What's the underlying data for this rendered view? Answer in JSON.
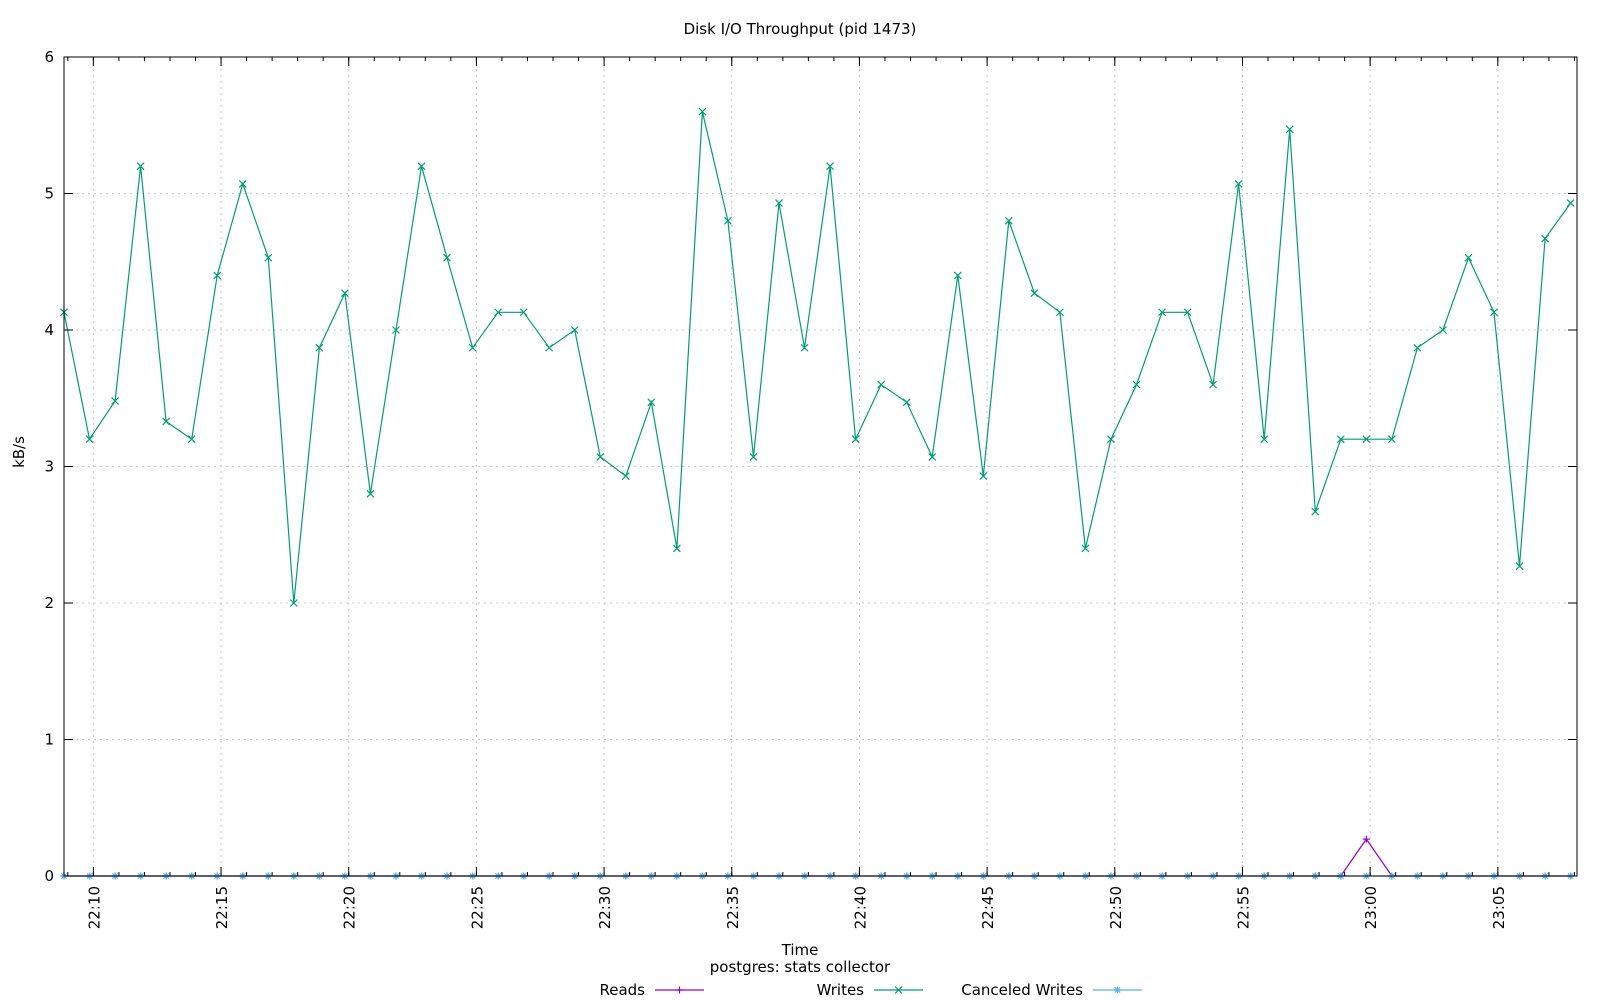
{
  "chart_data": {
    "type": "line",
    "title": "Disk I/O Throughput (pid 1473)",
    "xlabel": "Time",
    "ylabel": "kB/s",
    "subtitle": "postgres: stats collector",
    "ylim": [
      0,
      6
    ],
    "yticks": [
      "0",
      "1",
      "2",
      "3",
      "4",
      "5",
      "6"
    ],
    "xlim_minutes": [
      1328.85,
      1388.1
    ],
    "xticks": [
      {
        "label": "22:10",
        "minute": 1330
      },
      {
        "label": "22:15",
        "minute": 1335
      },
      {
        "label": "22:20",
        "minute": 1340
      },
      {
        "label": "22:25",
        "minute": 1345
      },
      {
        "label": "22:30",
        "minute": 1350
      },
      {
        "label": "22:35",
        "minute": 1355
      },
      {
        "label": "22:40",
        "minute": 1360
      },
      {
        "label": "22:45",
        "minute": 1365
      },
      {
        "label": "22:50",
        "minute": 1370
      },
      {
        "label": "22:55",
        "minute": 1375
      },
      {
        "label": "23:00",
        "minute": 1380
      },
      {
        "label": "23:05",
        "minute": 1385
      }
    ],
    "grid": true,
    "legend_position": "bottom-center",
    "series": [
      {
        "name": "Reads",
        "color": "#9400d3",
        "marker": "plus",
        "x_start_minute": 1328.85,
        "x_step_minutes": 1,
        "values": [
          0,
          0,
          0,
          0,
          0,
          0,
          0,
          0,
          0,
          0,
          0,
          0,
          0,
          0,
          0,
          0,
          0,
          0,
          0,
          0,
          0,
          0,
          0,
          0,
          0,
          0,
          0,
          0,
          0,
          0,
          0,
          0,
          0,
          0,
          0,
          0,
          0,
          0,
          0,
          0,
          0,
          0,
          0,
          0,
          0,
          0,
          0,
          0,
          0,
          0,
          0,
          0.27,
          0,
          0,
          0,
          0,
          0,
          0,
          0,
          0
        ]
      },
      {
        "name": "Writes",
        "color": "#009e73",
        "marker": "cross",
        "x_start_minute": 1328.85,
        "x_step_minutes": 1,
        "values": [
          4.13,
          3.2,
          3.48,
          5.2,
          3.33,
          3.2,
          4.4,
          5.07,
          4.53,
          2.0,
          3.87,
          4.27,
          2.8,
          4.0,
          5.2,
          4.53,
          3.87,
          4.13,
          4.13,
          3.87,
          4.0,
          3.07,
          2.93,
          3.47,
          2.4,
          5.6,
          4.8,
          3.07,
          4.93,
          3.87,
          5.2,
          3.2,
          3.6,
          3.47,
          3.07,
          4.4,
          2.93,
          4.8,
          4.27,
          4.13,
          2.4,
          3.2,
          3.6,
          4.13,
          4.13,
          3.6,
          5.07,
          3.2,
          5.47,
          2.67,
          3.2,
          3.2,
          3.2,
          3.87,
          4.0,
          4.53,
          4.13,
          2.27,
          4.67,
          4.93
        ]
      },
      {
        "name": "Canceled Writes",
        "color": "#56b4e9",
        "marker": "star",
        "x_start_minute": 1328.85,
        "x_step_minutes": 1,
        "values": [
          0,
          0,
          0,
          0,
          0,
          0,
          0,
          0,
          0,
          0,
          0,
          0,
          0,
          0,
          0,
          0,
          0,
          0,
          0,
          0,
          0,
          0,
          0,
          0,
          0,
          0,
          0,
          0,
          0,
          0,
          0,
          0,
          0,
          0,
          0,
          0,
          0,
          0,
          0,
          0,
          0,
          0,
          0,
          0,
          0,
          0,
          0,
          0,
          0,
          0,
          0,
          0,
          0,
          0,
          0,
          0,
          0,
          0,
          0,
          0
        ]
      }
    ]
  }
}
